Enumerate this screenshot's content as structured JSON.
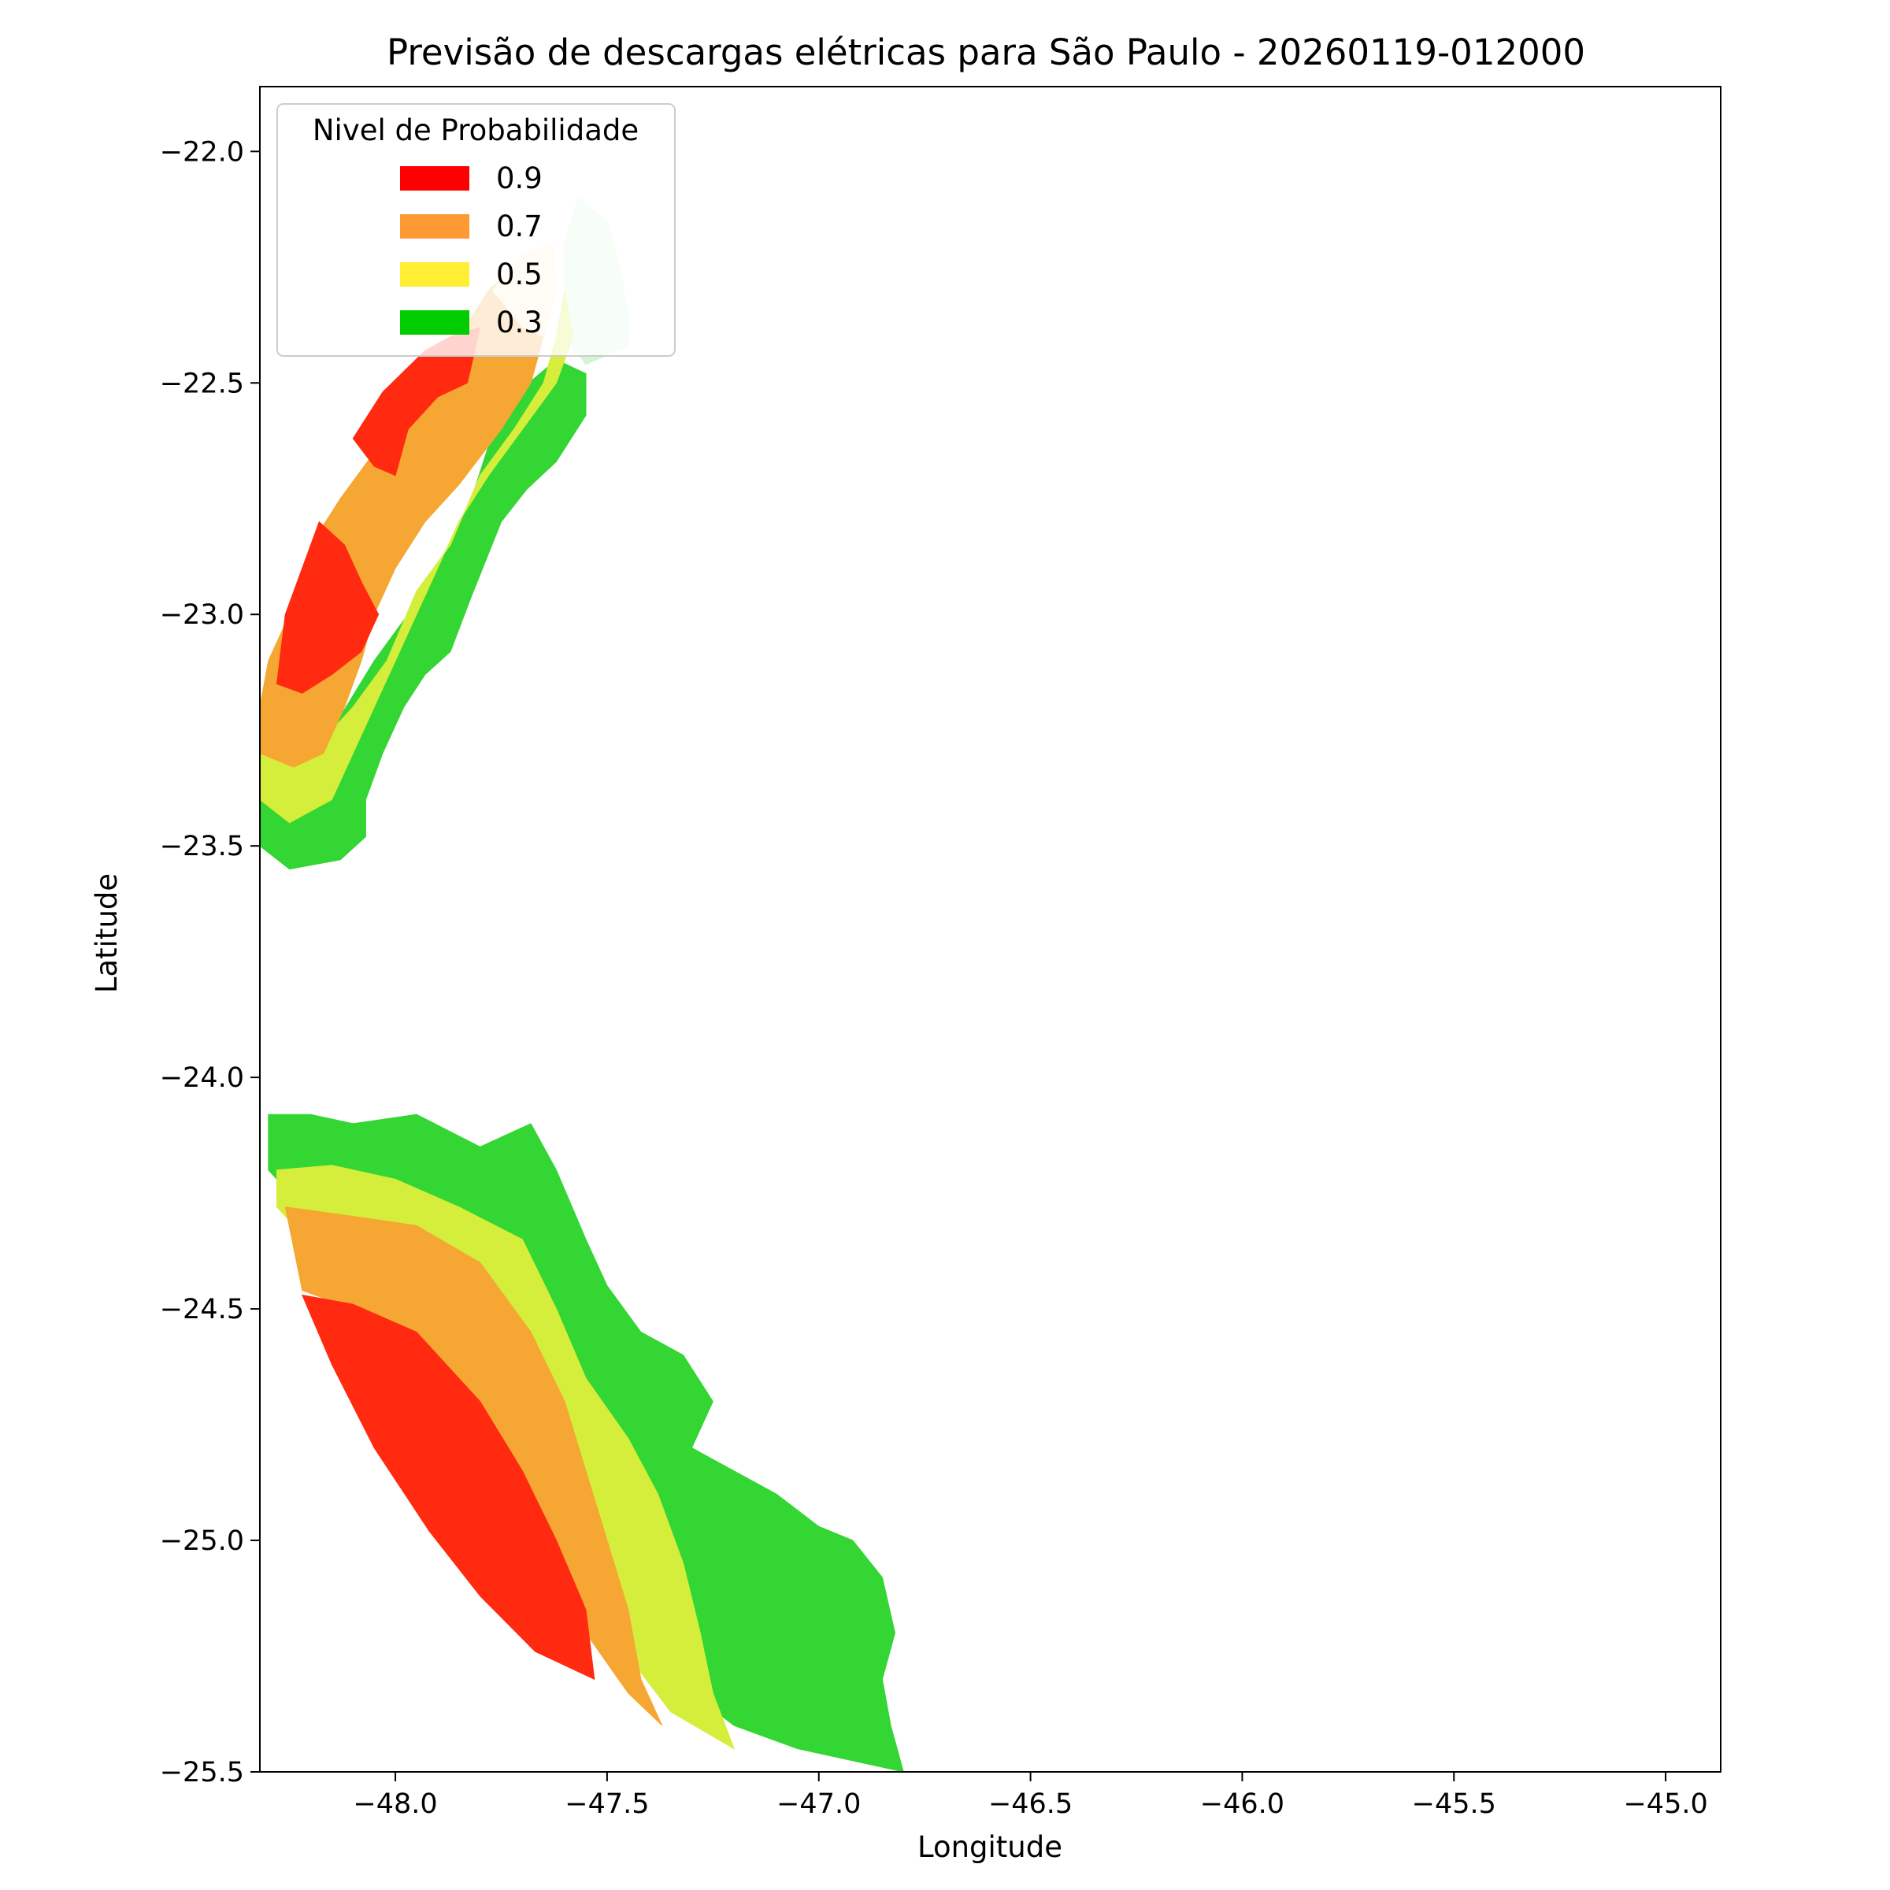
{
  "chart_data": {
    "type": "contour-map",
    "title": "Previsão de descargas elétricas para São Paulo - 20260119-012000",
    "xlabel": "Longitude",
    "ylabel": "Latitude",
    "xlim": [
      -48.32,
      -44.87
    ],
    "ylim": [
      -25.5,
      -21.86
    ],
    "xticks": [
      -48.0,
      -47.5,
      -47.0,
      -46.5,
      -46.0,
      -45.5,
      -45.0
    ],
    "xtick_labels": [
      "−48.0",
      "−47.5",
      "−47.0",
      "−46.5",
      "−46.0",
      "−45.5",
      "−45.0"
    ],
    "yticks": [
      -22.0,
      -22.5,
      -23.0,
      -23.5,
      -24.0,
      -24.5,
      -25.0,
      -25.5
    ],
    "ytick_labels": [
      "−22.0",
      "−22.5",
      "−23.0",
      "−23.5",
      "−24.0",
      "−24.5",
      "−25.0",
      "−25.5"
    ],
    "grid": false,
    "legend": {
      "title": "Nivel de Probabilidade",
      "placement": "upper-left",
      "entries": [
        {
          "label": "0.9",
          "color": "#ff0000"
        },
        {
          "label": "0.7",
          "color": "#ff9933"
        },
        {
          "label": "0.5",
          "color": "#ffee33"
        },
        {
          "label": "0.3",
          "color": "#00cc00"
        }
      ]
    },
    "regions": [
      {
        "name": "north-band-0.3",
        "level": 0.3,
        "color": "#33d633",
        "points": [
          [
            -48.32,
            -23.4
          ],
          [
            -48.32,
            -23.5
          ],
          [
            -48.25,
            -23.55
          ],
          [
            -48.13,
            -23.53
          ],
          [
            -48.07,
            -23.48
          ],
          [
            -48.07,
            -23.4
          ],
          [
            -48.03,
            -23.3
          ],
          [
            -47.98,
            -23.2
          ],
          [
            -47.93,
            -23.13
          ],
          [
            -47.87,
            -23.08
          ],
          [
            -47.82,
            -22.96
          ],
          [
            -47.75,
            -22.8
          ],
          [
            -47.69,
            -22.73
          ],
          [
            -47.62,
            -22.67
          ],
          [
            -47.55,
            -22.57
          ],
          [
            -47.55,
            -22.48
          ],
          [
            -47.62,
            -22.45
          ],
          [
            -47.75,
            -22.55
          ],
          [
            -47.82,
            -22.75
          ],
          [
            -47.9,
            -22.9
          ],
          [
            -47.97,
            -23.0
          ],
          [
            -48.05,
            -23.1
          ],
          [
            -48.13,
            -23.22
          ],
          [
            -48.2,
            -23.33
          ]
        ]
      },
      {
        "name": "north-band-0.3-light",
        "level": 0.3,
        "color": "#d4f5d4",
        "points": [
          [
            -47.6,
            -22.2
          ],
          [
            -47.57,
            -22.1
          ],
          [
            -47.5,
            -22.15
          ],
          [
            -47.47,
            -22.25
          ],
          [
            -47.45,
            -22.35
          ],
          [
            -47.45,
            -22.42
          ],
          [
            -47.55,
            -22.46
          ],
          [
            -47.6,
            -22.4
          ]
        ]
      },
      {
        "name": "north-band-0.5",
        "level": 0.5,
        "color": "#d4ee3b",
        "points": [
          [
            -48.32,
            -23.3
          ],
          [
            -48.32,
            -23.4
          ],
          [
            -48.25,
            -23.45
          ],
          [
            -48.15,
            -23.4
          ],
          [
            -48.1,
            -23.3
          ],
          [
            -48.05,
            -23.2
          ],
          [
            -48.0,
            -23.1
          ],
          [
            -47.95,
            -23.0
          ],
          [
            -47.9,
            -22.9
          ],
          [
            -47.85,
            -22.8
          ],
          [
            -47.78,
            -22.7
          ],
          [
            -47.7,
            -22.6
          ],
          [
            -47.62,
            -22.5
          ],
          [
            -47.58,
            -22.4
          ],
          [
            -47.6,
            -22.3
          ],
          [
            -47.62,
            -22.4
          ],
          [
            -47.65,
            -22.5
          ],
          [
            -47.72,
            -22.6
          ],
          [
            -47.8,
            -22.7
          ],
          [
            -47.87,
            -22.85
          ],
          [
            -47.95,
            -22.95
          ],
          [
            -48.02,
            -23.1
          ],
          [
            -48.1,
            -23.2
          ],
          [
            -48.18,
            -23.28
          ]
        ]
      },
      {
        "name": "north-band-0.7",
        "level": 0.7,
        "color": "#f6a733",
        "points": [
          [
            -48.32,
            -23.2
          ],
          [
            -48.32,
            -23.3
          ],
          [
            -48.24,
            -23.33
          ],
          [
            -48.17,
            -23.3
          ],
          [
            -48.12,
            -23.2
          ],
          [
            -48.08,
            -23.1
          ],
          [
            -48.05,
            -23.0
          ],
          [
            -48.0,
            -22.9
          ],
          [
            -47.93,
            -22.8
          ],
          [
            -47.85,
            -22.72
          ],
          [
            -47.75,
            -22.6
          ],
          [
            -47.68,
            -22.5
          ],
          [
            -47.65,
            -22.4
          ],
          [
            -47.68,
            -22.3
          ],
          [
            -47.72,
            -22.25
          ],
          [
            -47.78,
            -22.3
          ],
          [
            -47.85,
            -22.4
          ],
          [
            -47.95,
            -22.55
          ],
          [
            -48.05,
            -22.65
          ],
          [
            -48.13,
            -22.75
          ],
          [
            -48.2,
            -22.85
          ],
          [
            -48.25,
            -23.0
          ],
          [
            -48.3,
            -23.1
          ]
        ]
      },
      {
        "name": "north-band-0.7-light",
        "level": 0.7,
        "color": "#fde9cc",
        "points": [
          [
            -47.77,
            -22.3
          ],
          [
            -47.7,
            -22.22
          ],
          [
            -47.63,
            -22.2
          ],
          [
            -47.62,
            -22.3
          ],
          [
            -47.65,
            -22.4
          ],
          [
            -47.7,
            -22.38
          ]
        ]
      },
      {
        "name": "north-band-0.9-a",
        "level": 0.9,
        "color": "#ff2a10",
        "points": [
          [
            -48.1,
            -22.62
          ],
          [
            -48.03,
            -22.52
          ],
          [
            -47.93,
            -22.43
          ],
          [
            -47.87,
            -22.4
          ],
          [
            -47.8,
            -22.38
          ],
          [
            -47.83,
            -22.5
          ],
          [
            -47.9,
            -22.53
          ],
          [
            -47.97,
            -22.6
          ],
          [
            -48.0,
            -22.7
          ],
          [
            -48.05,
            -22.68
          ]
        ]
      },
      {
        "name": "north-band-0.9-b",
        "level": 0.9,
        "color": "#ff2a10",
        "points": [
          [
            -48.28,
            -23.15
          ],
          [
            -48.22,
            -23.17
          ],
          [
            -48.15,
            -23.13
          ],
          [
            -48.08,
            -23.08
          ],
          [
            -48.04,
            -23.0
          ],
          [
            -48.08,
            -22.93
          ],
          [
            -48.12,
            -22.85
          ],
          [
            -48.18,
            -22.8
          ],
          [
            -48.22,
            -22.9
          ],
          [
            -48.26,
            -23.0
          ]
        ]
      },
      {
        "name": "south-band-0.3",
        "level": 0.3,
        "color": "#33d633",
        "points": [
          [
            -48.3,
            -24.08
          ],
          [
            -48.3,
            -24.2
          ],
          [
            -48.2,
            -24.3
          ],
          [
            -48.05,
            -24.4
          ],
          [
            -47.9,
            -24.5
          ],
          [
            -47.75,
            -24.7
          ],
          [
            -47.6,
            -24.9
          ],
          [
            -47.48,
            -25.1
          ],
          [
            -47.4,
            -25.2
          ],
          [
            -47.3,
            -25.33
          ],
          [
            -47.2,
            -25.4
          ],
          [
            -47.05,
            -25.45
          ],
          [
            -46.8,
            -25.5
          ],
          [
            -46.83,
            -25.4
          ],
          [
            -46.85,
            -25.3
          ],
          [
            -46.82,
            -25.2
          ],
          [
            -46.85,
            -25.08
          ],
          [
            -46.92,
            -25.0
          ],
          [
            -47.0,
            -24.97
          ],
          [
            -47.1,
            -24.9
          ],
          [
            -47.2,
            -24.85
          ],
          [
            -47.3,
            -24.8
          ],
          [
            -47.25,
            -24.7
          ],
          [
            -47.32,
            -24.6
          ],
          [
            -47.42,
            -24.55
          ],
          [
            -47.5,
            -24.45
          ],
          [
            -47.55,
            -24.35
          ],
          [
            -47.62,
            -24.2
          ],
          [
            -47.68,
            -24.1
          ],
          [
            -47.8,
            -24.15
          ],
          [
            -47.95,
            -24.08
          ],
          [
            -48.1,
            -24.1
          ],
          [
            -48.2,
            -24.08
          ]
        ]
      },
      {
        "name": "south-band-0.5",
        "level": 0.5,
        "color": "#d4ee3b",
        "points": [
          [
            -48.28,
            -24.2
          ],
          [
            -48.28,
            -24.28
          ],
          [
            -48.18,
            -24.38
          ],
          [
            -48.05,
            -24.45
          ],
          [
            -47.9,
            -24.55
          ],
          [
            -47.78,
            -24.7
          ],
          [
            -47.62,
            -24.95
          ],
          [
            -47.52,
            -25.1
          ],
          [
            -47.45,
            -25.25
          ],
          [
            -47.35,
            -25.37
          ],
          [
            -47.2,
            -25.45
          ],
          [
            -47.25,
            -25.33
          ],
          [
            -47.28,
            -25.2
          ],
          [
            -47.32,
            -25.05
          ],
          [
            -47.38,
            -24.9
          ],
          [
            -47.45,
            -24.78
          ],
          [
            -47.55,
            -24.65
          ],
          [
            -47.62,
            -24.5
          ],
          [
            -47.7,
            -24.35
          ],
          [
            -47.85,
            -24.28
          ],
          [
            -48.0,
            -24.22
          ],
          [
            -48.15,
            -24.19
          ]
        ]
      },
      {
        "name": "south-band-0.7",
        "level": 0.7,
        "color": "#f6a733",
        "points": [
          [
            -48.26,
            -24.28
          ],
          [
            -48.22,
            -24.46
          ],
          [
            -48.1,
            -24.5
          ],
          [
            -47.98,
            -24.58
          ],
          [
            -47.85,
            -24.72
          ],
          [
            -47.72,
            -24.9
          ],
          [
            -47.62,
            -25.05
          ],
          [
            -47.55,
            -25.2
          ],
          [
            -47.45,
            -25.33
          ],
          [
            -47.37,
            -25.4
          ],
          [
            -47.42,
            -25.3
          ],
          [
            -47.45,
            -25.15
          ],
          [
            -47.5,
            -25.0
          ],
          [
            -47.55,
            -24.85
          ],
          [
            -47.6,
            -24.7
          ],
          [
            -47.68,
            -24.55
          ],
          [
            -47.8,
            -24.4
          ],
          [
            -47.95,
            -24.32
          ],
          [
            -48.1,
            -24.3
          ]
        ]
      },
      {
        "name": "south-band-0.9",
        "level": 0.9,
        "color": "#ff2a10",
        "points": [
          [
            -48.22,
            -24.47
          ],
          [
            -48.15,
            -24.62
          ],
          [
            -48.05,
            -24.8
          ],
          [
            -47.92,
            -24.98
          ],
          [
            -47.8,
            -25.12
          ],
          [
            -47.67,
            -25.24
          ],
          [
            -47.53,
            -25.3
          ],
          [
            -47.55,
            -25.15
          ],
          [
            -47.62,
            -25.0
          ],
          [
            -47.7,
            -24.85
          ],
          [
            -47.8,
            -24.7
          ],
          [
            -47.95,
            -24.55
          ],
          [
            -48.1,
            -24.49
          ]
        ]
      }
    ]
  }
}
